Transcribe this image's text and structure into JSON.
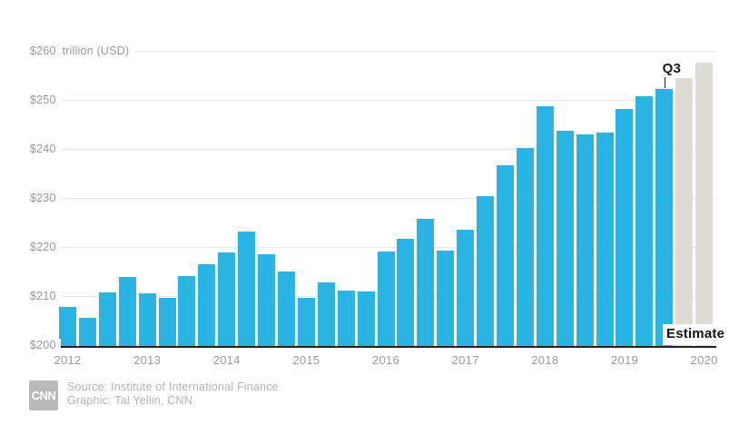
{
  "chart_data": {
    "type": "bar",
    "title": "",
    "ylabel_unit": "trillion (USD)",
    "ylim": [
      200,
      260
    ],
    "grid": true,
    "y_ticks": [
      {
        "value": 200,
        "label": "$200"
      },
      {
        "value": 210,
        "label": "$210"
      },
      {
        "value": 220,
        "label": "$220"
      },
      {
        "value": 230,
        "label": "$230"
      },
      {
        "value": 240,
        "label": "$240"
      },
      {
        "value": 250,
        "label": "$250"
      },
      {
        "value": 260,
        "label": "$260"
      }
    ],
    "bars": [
      {
        "quarter": "2012 Q1",
        "value": 208.0,
        "type": "actual"
      },
      {
        "quarter": "2012 Q2",
        "value": 205.7,
        "type": "actual"
      },
      {
        "quarter": "2012 Q3",
        "value": 211.0,
        "type": "actual"
      },
      {
        "quarter": "2012 Q4",
        "value": 214.0,
        "type": "actual"
      },
      {
        "quarter": "2013 Q1",
        "value": 210.8,
        "type": "actual"
      },
      {
        "quarter": "2013 Q2",
        "value": 209.9,
        "type": "actual"
      },
      {
        "quarter": "2013 Q3",
        "value": 214.2,
        "type": "actual"
      },
      {
        "quarter": "2013 Q4",
        "value": 216.6,
        "type": "actual"
      },
      {
        "quarter": "2014 Q1",
        "value": 219.1,
        "type": "actual"
      },
      {
        "quarter": "2014 Q2",
        "value": 223.4,
        "type": "actual"
      },
      {
        "quarter": "2014 Q3",
        "value": 218.8,
        "type": "actual"
      },
      {
        "quarter": "2014 Q4",
        "value": 215.2,
        "type": "actual"
      },
      {
        "quarter": "2015 Q1",
        "value": 209.9,
        "type": "actual"
      },
      {
        "quarter": "2015 Q2",
        "value": 213.0,
        "type": "actual"
      },
      {
        "quarter": "2015 Q3",
        "value": 211.3,
        "type": "actual"
      },
      {
        "quarter": "2015 Q4",
        "value": 211.1,
        "type": "actual"
      },
      {
        "quarter": "2016 Q1",
        "value": 219.3,
        "type": "actual"
      },
      {
        "quarter": "2016 Q2",
        "value": 221.8,
        "type": "actual"
      },
      {
        "quarter": "2016 Q3",
        "value": 225.9,
        "type": "actual"
      },
      {
        "quarter": "2016 Q4",
        "value": 219.4,
        "type": "actual"
      },
      {
        "quarter": "2017 Q1",
        "value": 223.7,
        "type": "actual"
      },
      {
        "quarter": "2017 Q2",
        "value": 230.6,
        "type": "actual"
      },
      {
        "quarter": "2017 Q3",
        "value": 236.9,
        "type": "actual"
      },
      {
        "quarter": "2017 Q4",
        "value": 240.3,
        "type": "actual"
      },
      {
        "quarter": "2018 Q1",
        "value": 248.9,
        "type": "actual"
      },
      {
        "quarter": "2018 Q2",
        "value": 243.9,
        "type": "actual"
      },
      {
        "quarter": "2018 Q3",
        "value": 243.2,
        "type": "actual"
      },
      {
        "quarter": "2018 Q4",
        "value": 243.6,
        "type": "actual"
      },
      {
        "quarter": "2019 Q1",
        "value": 248.3,
        "type": "actual"
      },
      {
        "quarter": "2019 Q2",
        "value": 250.9,
        "type": "actual"
      },
      {
        "quarter": "2019 Q3",
        "value": 252.5,
        "type": "actual"
      },
      {
        "quarter": "2019 Q4",
        "value": 254.6,
        "type": "estimate"
      },
      {
        "quarter": "2020",
        "value": 257.8,
        "type": "estimate"
      }
    ],
    "x_year_labels": [
      {
        "label": "2012",
        "bar_index": 0
      },
      {
        "label": "2013",
        "bar_index": 4
      },
      {
        "label": "2014",
        "bar_index": 8
      },
      {
        "label": "2015",
        "bar_index": 12
      },
      {
        "label": "2016",
        "bar_index": 16
      },
      {
        "label": "2017",
        "bar_index": 20
      },
      {
        "label": "2018",
        "bar_index": 24
      },
      {
        "label": "2019",
        "bar_index": 28
      },
      {
        "label": "2020",
        "bar_index": 32
      }
    ],
    "annotations": {
      "q3_label": "Q3",
      "q3_bar_index": 30,
      "estimate_label": "Estimate"
    },
    "colors": {
      "actual": "#29b4e4",
      "estimate": "#dedbd5",
      "gridline": "#e8e8e6",
      "axis_line": "#232323",
      "tick_text": "#9a9a9a"
    },
    "legend": "none"
  },
  "footer": {
    "logo_text": "CNN",
    "source_line": "Source: Institute of International Finance",
    "credit_line": "Graphic: Tal Yellin, CNN"
  }
}
